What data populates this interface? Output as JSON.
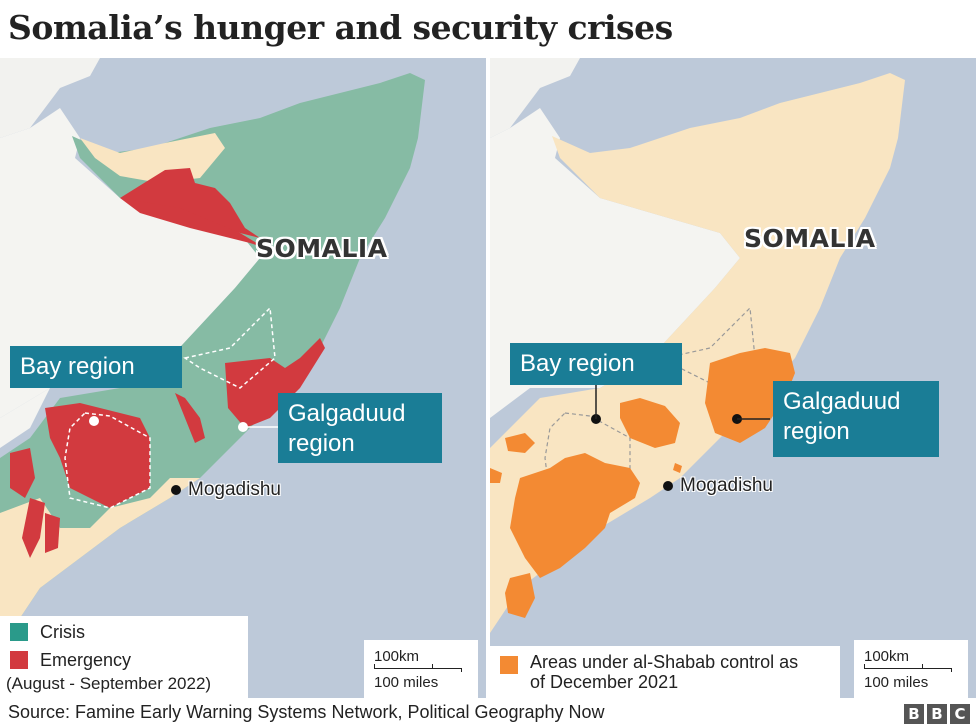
{
  "title": "Somalia’s hunger and security crises",
  "colors": {
    "sea": "#bdc9d9",
    "land": "#f7f7f5",
    "crisis": "#86bba4",
    "emergency": "#d23a3f",
    "beige": "#f9e5c2",
    "alshabab": "#f38a33",
    "callout": "#1a7d96"
  },
  "left_map": {
    "country_label": "SOMALIA",
    "bay_callout": "Bay region",
    "galgaduud_callout_line1": "Galgaduud",
    "galgaduud_callout_line2": "region",
    "city": "Mogadishu",
    "legend": {
      "crisis": "Crisis",
      "emergency": "Emergency",
      "period": "(August - September 2022)"
    },
    "scale_km": "100km",
    "scale_miles": "100 miles"
  },
  "right_map": {
    "country_label": "SOMALIA",
    "bay_callout": "Bay region",
    "galgaduud_callout_line1": "Galgaduud",
    "galgaduud_callout_line2": "region",
    "city": "Mogadishu",
    "legend": {
      "areas_line1": "Areas under al-Shabab control as",
      "areas_line2": "of December 2021"
    },
    "scale_km": "100km",
    "scale_miles": "100 miles"
  },
  "source": "Source: Famine Early Warning Systems Network, Political Geography Now",
  "logo": [
    "B",
    "B",
    "C"
  ]
}
